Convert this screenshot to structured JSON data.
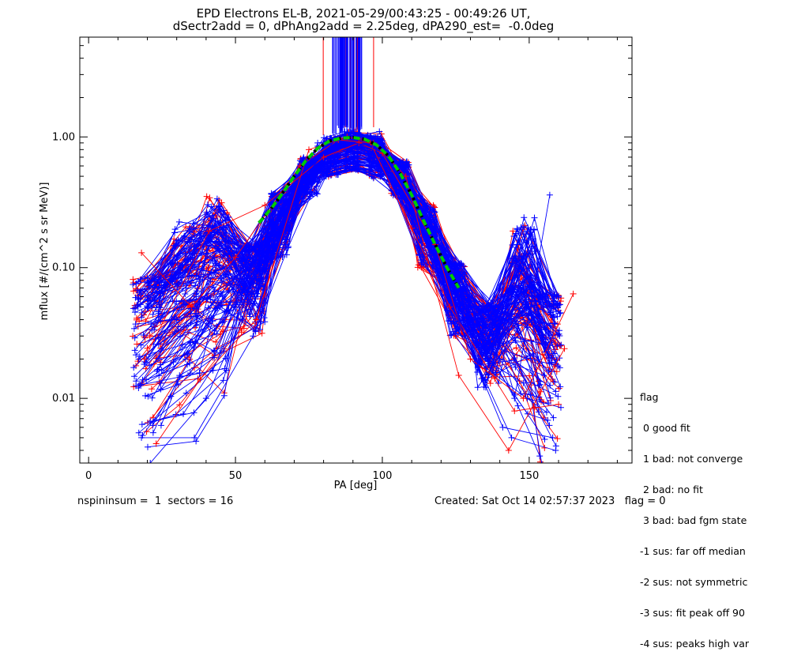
{
  "header": {
    "title_line1": "EPD Electrons EL-B, 2021-05-29/00:43:25 - 00:49:26 UT,",
    "title_line2": "dSectr2add = 0, dPhAng2add = 2.25deg, dPA290_est=  -0.0deg"
  },
  "chart_data": {
    "type": "line",
    "xlabel": "PA [deg]",
    "ylabel": "mflux [#/(cm^2 s sr MeV)]",
    "xlim": [
      -3,
      185
    ],
    "ylim": [
      0.0032,
      5.8
    ],
    "ylog": true,
    "x_ticks": [
      0,
      50,
      100,
      150
    ],
    "x_tick_labels": [
      "0",
      "50",
      "100",
      "150"
    ],
    "y_ticks": [
      0.01,
      0.1,
      1.0
    ],
    "y_tick_labels": [
      "0.01",
      "0.10",
      "1.00"
    ],
    "series_colors": {
      "spectra_a": "#0000ff",
      "spectra_b": "#ff0000",
      "fit_dashed": "#00cc00",
      "fit_dotted": "#000000"
    },
    "grid": false,
    "representative_profiles": [
      {
        "color": "blue",
        "x": [
          18,
          36,
          56,
          77,
          86,
          95,
          105,
          124,
          141,
          158
        ],
        "y": [
          0.005,
          0.005,
          0.03,
          0.7,
          0.9,
          0.75,
          0.4,
          0.05,
          0.006,
          0.005
        ]
      },
      {
        "color": "blue",
        "x": [
          16,
          30,
          55,
          78,
          88,
          98,
          110,
          125,
          140,
          155
        ],
        "y": [
          0.037,
          0.04,
          0.1,
          0.85,
          0.95,
          0.9,
          0.3,
          0.08,
          0.02,
          0.015
        ]
      },
      {
        "color": "red",
        "x": [
          18,
          35,
          50,
          72,
          85,
          96,
          110,
          123,
          145,
          160
        ],
        "y": [
          0.13,
          0.05,
          0.12,
          0.6,
          0.95,
          0.9,
          0.2,
          0.05,
          0.008,
          0.009
        ]
      },
      {
        "color": "blue",
        "x": [
          21,
          40,
          58,
          78,
          90,
          99,
          115,
          130,
          145,
          157
        ],
        "y": [
          0.0032,
          0.01,
          0.08,
          0.9,
          1.0,
          1.1,
          0.2,
          0.04,
          0.01,
          0.36
        ]
      },
      {
        "color": "red",
        "x": [
          19,
          41,
          60,
          80,
          92,
          100,
          118,
          130,
          148,
          165
        ],
        "y": [
          0.02,
          0.19,
          0.3,
          0.7,
          0.9,
          0.75,
          0.15,
          0.02,
          0.01,
          0.063
        ]
      },
      {
        "color": "blue",
        "x": [
          17,
          33,
          50,
          70,
          84,
          97,
          112,
          128,
          144,
          159
        ],
        "y": [
          0.012,
          0.02,
          0.05,
          0.4,
          0.95,
          0.85,
          0.25,
          0.03,
          0.005,
          0.004
        ]
      },
      {
        "color": "red",
        "x": [
          23,
          38,
          57,
          75,
          88,
          97,
          108,
          126,
          143,
          162
        ],
        "y": [
          0.0045,
          0.014,
          0.04,
          0.8,
          1.0,
          0.9,
          0.5,
          0.015,
          0.004,
          0.024
        ]
      }
    ],
    "fit_curve": {
      "x": [
        58,
        62,
        66,
        70,
        74,
        78,
        82,
        86,
        90,
        94,
        98,
        102,
        106,
        110,
        114,
        118,
        122,
        126
      ],
      "y": [
        0.22,
        0.28,
        0.37,
        0.5,
        0.66,
        0.82,
        0.93,
        0.98,
        0.99,
        0.96,
        0.87,
        0.72,
        0.53,
        0.36,
        0.23,
        0.15,
        0.1,
        0.07
      ]
    },
    "vertical_lines_x_range": [
      77,
      99
    ]
  },
  "legend": {
    "title": "flag",
    "items": [
      " 0 good fit",
      " 1 bad: not converge",
      " 2 bad: no fit",
      " 3 bad: bad fgm state",
      "-1 sus: far off median",
      "-2 sus: not symmetric",
      "-3 sus: fit peak off 90",
      "-4 sus: peaks high var"
    ]
  },
  "footer": {
    "left": "nspininsum =  1  sectors = 16",
    "right": "Created: Sat Oct 14 02:57:37 2023   flag = 0"
  }
}
